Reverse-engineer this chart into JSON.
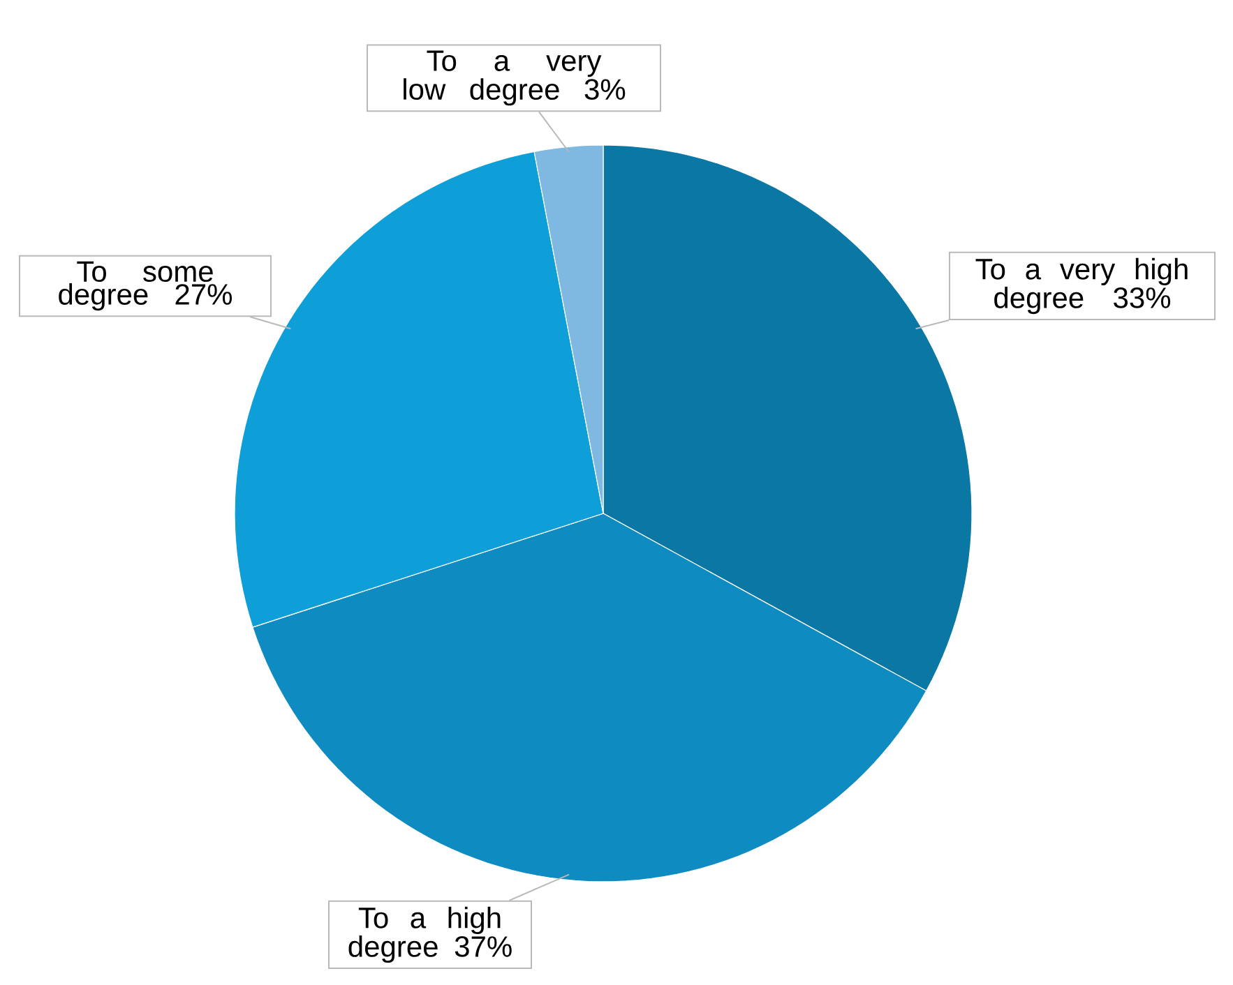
{
  "chart_data": {
    "type": "pie",
    "categories": [
      "To a very high degree",
      "To a high degree",
      "To some degree",
      "To a very low degree"
    ],
    "values": [
      33,
      37,
      27,
      3
    ],
    "value_labels": [
      "33%",
      "37%",
      "27%",
      "3%"
    ],
    "colors": [
      "#0b77a5",
      "#0e8bc0",
      "#0f9fd8",
      "#7fb8e0"
    ]
  }
}
